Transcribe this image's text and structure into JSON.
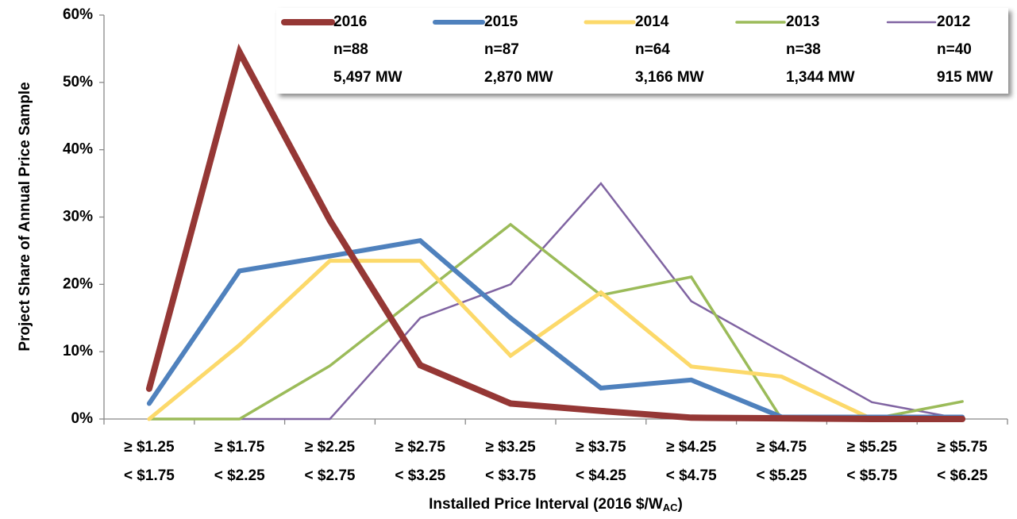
{
  "chart_data": {
    "type": "line",
    "y_label": "Project Share of Annual Price Sample",
    "x_label": [
      "Installed Price Interval (2016 $/W",
      "AC",
      ")"
    ],
    "categories": [
      [
        "≥ $1.25",
        "< $1.75"
      ],
      [
        "≥ $1.75",
        "< $2.25"
      ],
      [
        "≥ $2.25",
        "< $2.75"
      ],
      [
        "≥ $2.75",
        "< $3.25"
      ],
      [
        "≥ $3.25",
        "< $3.75"
      ],
      [
        "≥ $3.75",
        "< $4.25"
      ],
      [
        "≥ $4.25",
        "< $4.75"
      ],
      [
        "≥ $4.75",
        "< $5.25"
      ],
      [
        "≥ $5.25",
        "< $5.75"
      ],
      [
        "≥ $5.75",
        "< $6.25"
      ]
    ],
    "ylim": [
      0,
      60
    ],
    "yticks": [
      {
        "value": 0,
        "label": "0%"
      },
      {
        "value": 10,
        "label": "10%"
      },
      {
        "value": 20,
        "label": "20%"
      },
      {
        "value": 30,
        "label": "30%"
      },
      {
        "value": 40,
        "label": "40%"
      },
      {
        "value": 50,
        "label": "50%"
      },
      {
        "value": 60,
        "label": "60%"
      }
    ],
    "grid": false,
    "series": [
      {
        "name": "2016",
        "sample": "n=88",
        "capacity": "5,497 MW",
        "color": "#953735",
        "values": [
          4.5,
          54.5,
          29.5,
          8,
          2.3,
          1.2,
          0.2,
          0.1,
          0,
          0
        ]
      },
      {
        "name": "2015",
        "sample": "n=87",
        "capacity": "2,870 MW",
        "color": "#4f81bd",
        "values": [
          2.3,
          22,
          24.2,
          26.5,
          15,
          4.6,
          5.8,
          0.3,
          0.3,
          0.3
        ]
      },
      {
        "name": "2014",
        "sample": "n=64",
        "capacity": "3,166 MW",
        "color": "#fcd96a",
        "values": [
          0,
          11,
          23.5,
          23.5,
          9.4,
          18.8,
          7.8,
          6.3,
          0,
          0
        ]
      },
      {
        "name": "2013",
        "sample": "n=38",
        "capacity": "1,344 MW",
        "color": "#9bbb59",
        "values": [
          0,
          0,
          7.9,
          18.4,
          28.9,
          18.4,
          21.1,
          0,
          0,
          2.6
        ]
      },
      {
        "name": "2012",
        "sample": "n=40",
        "capacity": "915 MW",
        "color": "#8064a2",
        "values": [
          0,
          0,
          0,
          15,
          20,
          35,
          17.5,
          10,
          2.5,
          0
        ]
      }
    ]
  }
}
